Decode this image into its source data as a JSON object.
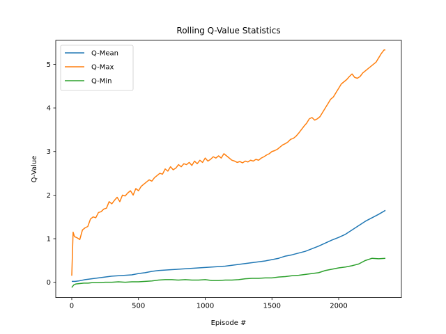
{
  "chart_data": {
    "type": "line",
    "title": "Rolling Q-Value Statistics",
    "xlabel": "Episode #",
    "ylabel": "Q-Value",
    "xlim": [
      -120,
      2470
    ],
    "ylim": [
      -0.35,
      5.55
    ],
    "xticks": [
      0,
      500,
      1000,
      1500,
      2000
    ],
    "yticks": [
      0,
      1,
      2,
      3,
      4,
      5
    ],
    "legend_position": "top-left",
    "grid": false,
    "series": [
      {
        "name": "Q-Mean",
        "color": "#1f77b4",
        "x": [
          0,
          25,
          50,
          100,
          150,
          200,
          250,
          300,
          350,
          400,
          450,
          500,
          550,
          600,
          650,
          700,
          750,
          800,
          850,
          900,
          950,
          1000,
          1050,
          1100,
          1150,
          1200,
          1250,
          1300,
          1350,
          1400,
          1450,
          1500,
          1550,
          1600,
          1650,
          1700,
          1750,
          1800,
          1850,
          1900,
          1950,
          2000,
          2050,
          2100,
          2150,
          2200,
          2250,
          2300,
          2350
        ],
        "values": [
          0.02,
          0.02,
          0.03,
          0.06,
          0.08,
          0.1,
          0.12,
          0.14,
          0.15,
          0.16,
          0.17,
          0.2,
          0.22,
          0.25,
          0.27,
          0.28,
          0.29,
          0.3,
          0.31,
          0.32,
          0.33,
          0.34,
          0.35,
          0.36,
          0.37,
          0.39,
          0.41,
          0.43,
          0.45,
          0.47,
          0.49,
          0.52,
          0.55,
          0.6,
          0.63,
          0.67,
          0.71,
          0.77,
          0.83,
          0.9,
          0.97,
          1.03,
          1.1,
          1.2,
          1.3,
          1.4,
          1.48,
          1.56,
          1.65
        ]
      },
      {
        "name": "Q-Max",
        "color": "#ff7f0e",
        "x": [
          0,
          10,
          20,
          40,
          60,
          80,
          100,
          120,
          140,
          160,
          180,
          200,
          220,
          240,
          260,
          280,
          300,
          320,
          340,
          360,
          380,
          400,
          420,
          440,
          460,
          480,
          500,
          520,
          540,
          560,
          580,
          600,
          620,
          640,
          660,
          680,
          700,
          720,
          740,
          760,
          780,
          800,
          820,
          840,
          860,
          880,
          900,
          920,
          940,
          960,
          980,
          1000,
          1020,
          1040,
          1060,
          1080,
          1100,
          1120,
          1140,
          1160,
          1180,
          1200,
          1220,
          1240,
          1260,
          1280,
          1300,
          1320,
          1340,
          1360,
          1380,
          1400,
          1420,
          1440,
          1460,
          1480,
          1500,
          1520,
          1540,
          1560,
          1580,
          1600,
          1620,
          1640,
          1660,
          1680,
          1700,
          1720,
          1740,
          1760,
          1780,
          1800,
          1820,
          1840,
          1860,
          1880,
          1900,
          1920,
          1940,
          1960,
          1980,
          2000,
          2020,
          2040,
          2060,
          2080,
          2100,
          2120,
          2140,
          2160,
          2180,
          2200,
          2220,
          2240,
          2260,
          2280,
          2300,
          2320,
          2340,
          2350
        ],
        "values": [
          0.15,
          1.15,
          1.05,
          1.02,
          0.98,
          1.2,
          1.25,
          1.28,
          1.45,
          1.5,
          1.48,
          1.6,
          1.62,
          1.68,
          1.7,
          1.85,
          1.8,
          1.88,
          1.95,
          1.85,
          2.0,
          1.98,
          2.05,
          2.1,
          2.0,
          2.15,
          2.1,
          2.2,
          2.25,
          2.3,
          2.35,
          2.32,
          2.4,
          2.45,
          2.5,
          2.48,
          2.6,
          2.55,
          2.65,
          2.58,
          2.62,
          2.7,
          2.65,
          2.72,
          2.7,
          2.75,
          2.68,
          2.78,
          2.72,
          2.8,
          2.75,
          2.85,
          2.78,
          2.82,
          2.88,
          2.85,
          2.9,
          2.85,
          2.95,
          2.9,
          2.85,
          2.8,
          2.78,
          2.75,
          2.77,
          2.74,
          2.78,
          2.76,
          2.8,
          2.78,
          2.82,
          2.8,
          2.85,
          2.88,
          2.92,
          2.95,
          3.0,
          3.02,
          3.05,
          3.1,
          3.15,
          3.18,
          3.22,
          3.28,
          3.3,
          3.35,
          3.42,
          3.5,
          3.58,
          3.65,
          3.75,
          3.78,
          3.72,
          3.75,
          3.8,
          3.9,
          4.0,
          4.1,
          4.2,
          4.25,
          4.35,
          4.45,
          4.55,
          4.6,
          4.65,
          4.72,
          4.78,
          4.7,
          4.68,
          4.72,
          4.8,
          4.85,
          4.9,
          4.95,
          5.0,
          5.05,
          5.15,
          5.25,
          5.33,
          5.33
        ]
      },
      {
        "name": "Q-Min",
        "color": "#2ca02c",
        "x": [
          0,
          15,
          30,
          60,
          90,
          120,
          150,
          200,
          250,
          300,
          350,
          400,
          450,
          500,
          550,
          600,
          650,
          700,
          750,
          800,
          850,
          900,
          950,
          1000,
          1050,
          1100,
          1150,
          1200,
          1250,
          1300,
          1350,
          1400,
          1450,
          1500,
          1550,
          1600,
          1650,
          1700,
          1750,
          1800,
          1850,
          1900,
          1950,
          2000,
          2050,
          2100,
          2150,
          2200,
          2250,
          2300,
          2350
        ],
        "values": [
          -0.12,
          -0.06,
          -0.04,
          -0.03,
          -0.02,
          -0.02,
          -0.01,
          -0.01,
          0.0,
          0.0,
          0.01,
          0.0,
          0.01,
          0.01,
          0.02,
          0.03,
          0.05,
          0.06,
          0.06,
          0.05,
          0.06,
          0.05,
          0.05,
          0.06,
          0.04,
          0.04,
          0.05,
          0.05,
          0.06,
          0.08,
          0.09,
          0.09,
          0.1,
          0.1,
          0.12,
          0.13,
          0.15,
          0.16,
          0.18,
          0.2,
          0.22,
          0.27,
          0.3,
          0.33,
          0.35,
          0.38,
          0.42,
          0.5,
          0.55,
          0.54,
          0.55
        ]
      }
    ]
  }
}
